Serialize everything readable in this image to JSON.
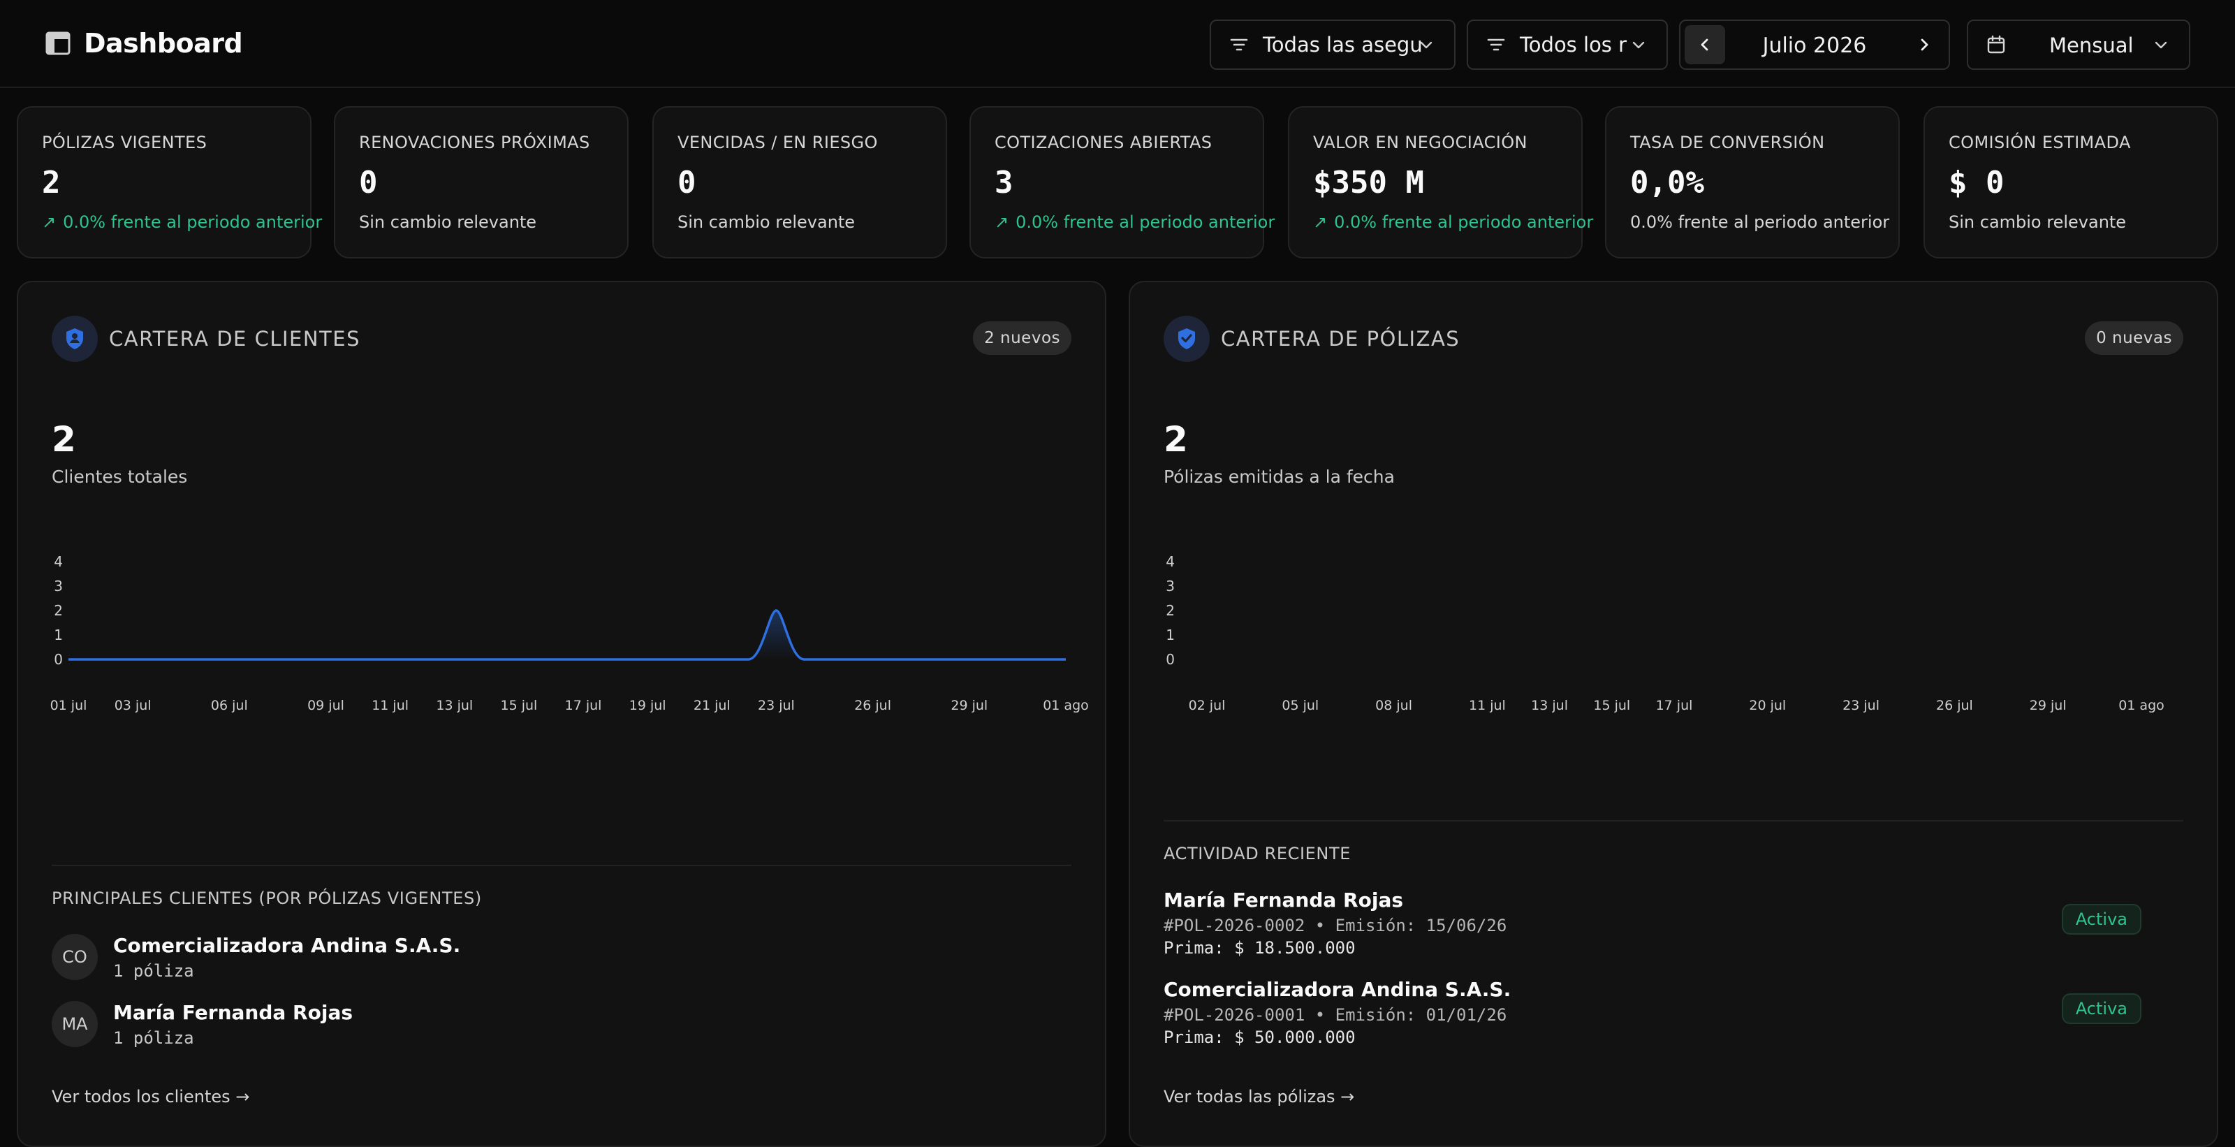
{
  "header": {
    "title": "Dashboard",
    "filter_insurers": "Todas las asegu",
    "filter_other": "Todos los r",
    "month": "Julio 2026",
    "period": "Mensual"
  },
  "kpis": [
    {
      "label": "PÓLIZAS VIGENTES",
      "value": "2",
      "note": "0.0% frente al periodo anterior",
      "trend": "up"
    },
    {
      "label": "RENOVACIONES PRÓXIMAS",
      "value": "0",
      "note": "Sin cambio relevante",
      "trend": "none"
    },
    {
      "label": "VENCIDAS / EN RIESGO",
      "value": "0",
      "note": "Sin cambio relevante",
      "trend": "none"
    },
    {
      "label": "COTIZACIONES ABIERTAS",
      "value": "3",
      "note": "0.0% frente al periodo anterior",
      "trend": "up"
    },
    {
      "label": "VALOR EN NEGOCIACIÓN",
      "value": "$350 M",
      "note": "0.0% frente al periodo anterior",
      "trend": "up"
    },
    {
      "label": "TASA DE CONVERSIÓN",
      "value": "0,0%",
      "note": "0.0% frente al periodo anterior",
      "trend": "none"
    },
    {
      "label": "COMISIÓN ESTIMADA",
      "value": "$ 0",
      "note": "Sin cambio relevante",
      "trend": "none"
    }
  ],
  "clients_panel": {
    "title": "CARTERA DE CLIENTES",
    "badge": "2 nuevos",
    "total": "2",
    "total_label": "Clientes totales",
    "top_title": "PRINCIPALES CLIENTES (POR PÓLIZAS VIGENTES)",
    "top_clients": [
      {
        "initials": "CO",
        "name": "Comercializadora Andina S.A.S.",
        "policies": "1 póliza"
      },
      {
        "initials": "MA",
        "name": "María Fernanda Rojas",
        "policies": "1 póliza"
      }
    ],
    "link": "Ver todos los clientes →"
  },
  "policies_panel": {
    "title": "CARTERA DE PÓLIZAS",
    "badge": "0 nuevas",
    "total": "2",
    "total_label": "Pólizas emitidas a la fecha",
    "activity_title": "ACTIVIDAD RECIENTE",
    "activity": [
      {
        "name": "María Fernanda Rojas",
        "meta": "#POL-2026-0002 • Emisión: 15/06/26",
        "premium": "Prima: $ 18.500.000",
        "status": "Activa"
      },
      {
        "name": "Comercializadora Andina S.A.S.",
        "meta": "#POL-2026-0001 • Emisión: 01/01/26",
        "premium": "Prima: $ 50.000.000",
        "status": "Activa"
      }
    ],
    "link": "Ver todas las pólizas →"
  },
  "chart_data": [
    {
      "type": "line",
      "x": [
        "01 jul",
        "03 jul",
        "06 jul",
        "09 jul",
        "11 jul",
        "13 jul",
        "15 jul",
        "17 jul",
        "19 jul",
        "21 jul",
        "23 jul",
        "26 jul",
        "29 jul",
        "01 ago"
      ],
      "x_days": [
        1,
        3,
        6,
        9,
        11,
        13,
        15,
        17,
        19,
        21,
        23,
        26,
        29,
        32
      ],
      "series": [
        {
          "values": [
            0,
            0,
            0,
            0,
            0,
            0,
            0,
            0,
            0,
            0,
            2,
            0,
            0,
            0
          ]
        }
      ],
      "yticks": [
        0,
        1,
        2,
        3,
        4
      ],
      "ylim": [
        0,
        4
      ],
      "color": "#2f6fe0"
    },
    {
      "type": "line",
      "x": [
        "02 jul",
        "05 jul",
        "08 jul",
        "11 jul",
        "13 jul",
        "15 jul",
        "17 jul",
        "20 jul",
        "23 jul",
        "26 jul",
        "29 jul",
        "01 ago"
      ],
      "x_days": [
        2,
        5,
        8,
        11,
        13,
        15,
        17,
        20,
        23,
        26,
        29,
        32
      ],
      "series": [],
      "yticks": [
        0,
        1,
        2,
        3,
        4
      ],
      "ylim": [
        0,
        4
      ],
      "color": "#2f6fe0"
    }
  ]
}
